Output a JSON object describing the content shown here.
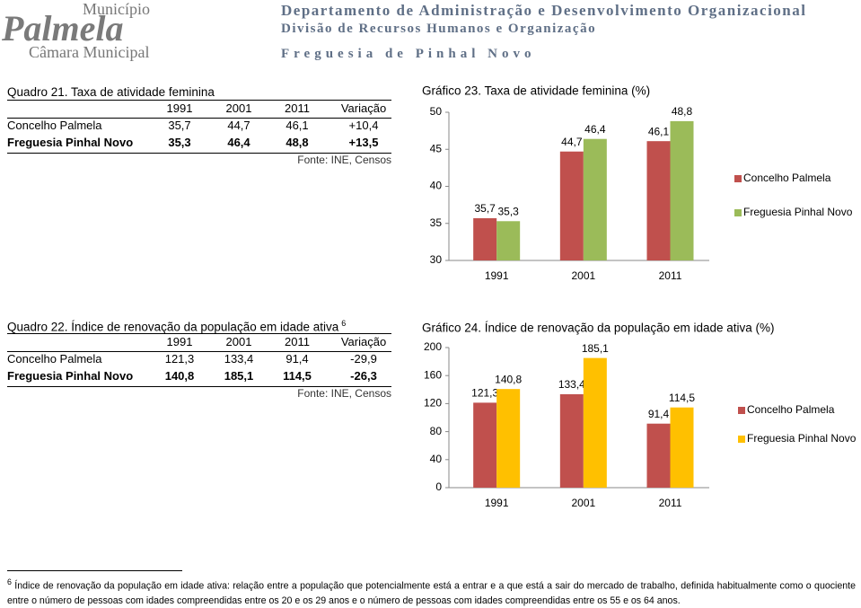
{
  "header": {
    "logo": [
      "Município",
      "Palmela",
      "Câmara Municipal"
    ],
    "lines": [
      "Departamento de Administração e Desenvolvimento Organizacional",
      "Divisão de Recursos Humanos e Organização",
      "Freguesia de Pinhal Novo"
    ]
  },
  "tables": [
    {
      "caption": "Quadro 21. Taxa de atividade feminina",
      "columns": [
        "1991",
        "2001",
        "2011",
        "Variação"
      ],
      "rows": [
        [
          "Concelho Palmela",
          "35,7",
          "44,7",
          "46,1",
          "+10,4"
        ],
        [
          "Freguesia Pinhal Novo",
          "35,3",
          "46,4",
          "48,8",
          "+13,5"
        ]
      ],
      "source": "Fonte: INE, Censos"
    },
    {
      "caption": "Quadro 22. Índice de renovação da população em idade ativa",
      "note_ref": "6",
      "columns": [
        "1991",
        "2001",
        "2011",
        "Variação"
      ],
      "rows": [
        [
          "Concelho Palmela",
          "121,3",
          "133,4",
          "91,4",
          "-29,9"
        ],
        [
          "Freguesia Pinhal Novo",
          "140,8",
          "185,1",
          "114,5",
          "-26,3"
        ]
      ],
      "source": "Fonte: INE, Censos"
    }
  ],
  "chart_data": [
    {
      "type": "bar",
      "title": "Gráfico 23. Taxa de atividade feminina (%)",
      "categories": [
        "1991",
        "2001",
        "2011"
      ],
      "series": [
        {
          "name": "Concelho Palmela",
          "color": "#c0504d",
          "values": [
            35.7,
            44.7,
            46.1
          ],
          "value_labels": [
            "35,7",
            "44,7",
            "46,1"
          ]
        },
        {
          "name": "Freguesia Pinhal Novo",
          "color": "#9bbb59",
          "values": [
            35.3,
            46.4,
            48.8
          ],
          "value_labels": [
            "35,3",
            "46,4",
            "48,8"
          ]
        }
      ],
      "ylim": [
        30,
        50
      ],
      "yticks": [
        30,
        35,
        40,
        45,
        50
      ],
      "grid": false,
      "legend": "right"
    },
    {
      "type": "bar",
      "title": "Gráfico 24. Índice de renovação da população em idade ativa (%)",
      "categories": [
        "1991",
        "2001",
        "2011"
      ],
      "series": [
        {
          "name": "Concelho Palmela",
          "color": "#c0504d",
          "values": [
            121.3,
            133.4,
            91.4
          ],
          "value_labels": [
            "121,3",
            "133,4",
            "91,4"
          ]
        },
        {
          "name": "Freguesia Pinhal Novo",
          "color": "#ffc000",
          "values": [
            140.8,
            185.1,
            114.5
          ],
          "value_labels": [
            "140,8",
            "185,1",
            "114,5"
          ]
        }
      ],
      "ylim": [
        0,
        200
      ],
      "yticks": [
        0,
        40,
        80,
        120,
        160,
        200
      ],
      "grid": false,
      "legend": "right"
    }
  ],
  "footnote": {
    "marker": "6",
    "term": "Índice de renovação da população em idade ativa:",
    "text": "relação entre a população que potencialmente está a entrar e a que está a sair do mercado de trabalho, definida habitualmente como o quociente entre o número de pessoas com idades compreendidas entre os 20 e os 29 anos e o número de pessoas com idades compreendidas entre os 55 e os 64 anos."
  }
}
